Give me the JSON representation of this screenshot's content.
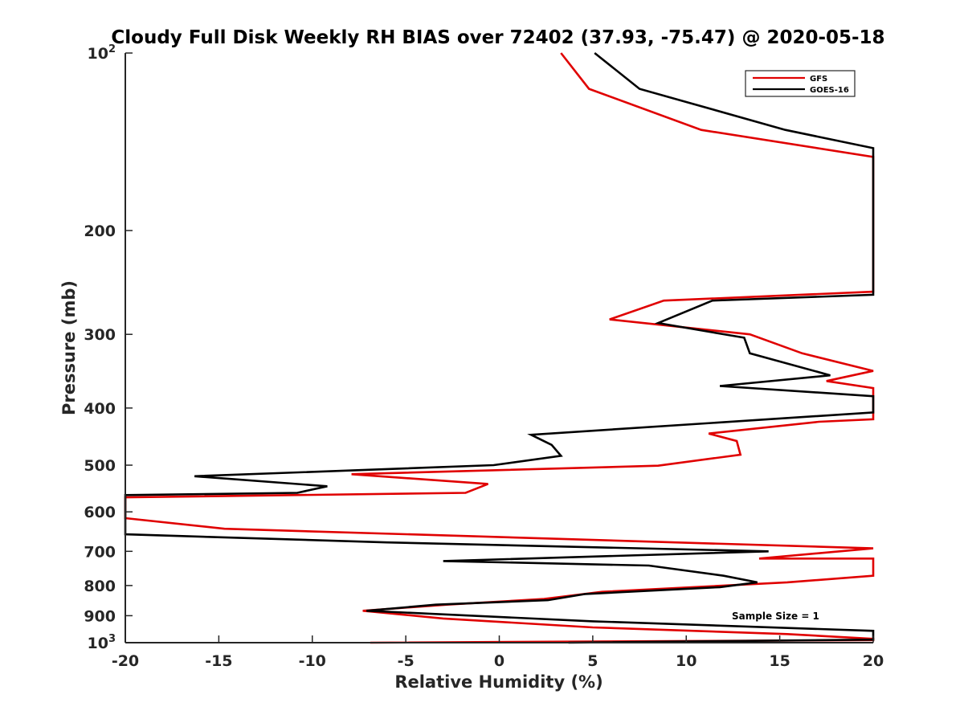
{
  "chart_data": {
    "type": "line",
    "title": "Cloudy Full Disk Weekly RH BIAS over 72402 (37.93, -75.47) @ 2020-05-18",
    "xlabel": "Relative Humidity (%)",
    "ylabel": "Pressure (mb)",
    "xlim": [
      -20,
      20
    ],
    "ylim": [
      100,
      1000
    ],
    "y_scale": "log",
    "y_reversed": true,
    "grid": false,
    "legend_position": "top-right",
    "x_ticks": [
      "-20",
      "-15",
      "-10",
      "-5",
      "0",
      "5",
      "10",
      "15",
      "20"
    ],
    "y_ticks": [
      {
        "value": 100,
        "base": "10",
        "exp": "2"
      },
      {
        "value": 200,
        "label": "200"
      },
      {
        "value": 300,
        "label": "300"
      },
      {
        "value": 400,
        "label": "400"
      },
      {
        "value": 500,
        "label": "500"
      },
      {
        "value": 600,
        "label": "600"
      },
      {
        "value": 700,
        "label": "700"
      },
      {
        "value": 800,
        "label": "800"
      },
      {
        "value": 900,
        "label": "900"
      },
      {
        "value": 1000,
        "base": "10",
        "exp": "3"
      }
    ],
    "annotation": "Sample Size = 1",
    "series": [
      {
        "name": "GFS",
        "color": "#e00000",
        "points": [
          [
            3.3,
            100
          ],
          [
            4.8,
            115
          ],
          [
            10.8,
            135
          ],
          [
            20,
            150
          ],
          [
            20,
            254
          ],
          [
            8.8,
            263
          ],
          [
            5.9,
            283
          ],
          [
            13.4,
            300
          ],
          [
            16.2,
            323
          ],
          [
            20,
            346
          ],
          [
            17.5,
            360
          ],
          [
            20,
            370
          ],
          [
            20,
            418
          ],
          [
            17.1,
            422
          ],
          [
            11.2,
            442
          ],
          [
            12.7,
            455
          ],
          [
            12.9,
            480
          ],
          [
            8.5,
            501
          ],
          [
            -7.9,
            518
          ],
          [
            -0.6,
            538
          ],
          [
            -1.8,
            557
          ],
          [
            -20,
            567
          ],
          [
            -20,
            615
          ],
          [
            -20,
            615
          ],
          [
            -14.7,
            641
          ],
          [
            20,
            692
          ],
          [
            13.9,
            720
          ],
          [
            20,
            720
          ],
          [
            20,
            740
          ],
          [
            20,
            770
          ],
          [
            15.4,
            790
          ],
          [
            5.5,
            820
          ],
          [
            2.4,
            843
          ],
          [
            -2.8,
            862
          ],
          [
            -7.3,
            883
          ],
          [
            -3.0,
            910
          ],
          [
            5.0,
            942
          ],
          [
            15.4,
            967
          ],
          [
            20,
            985
          ],
          [
            20,
            990
          ],
          [
            -6.9,
            1000
          ]
        ]
      },
      {
        "name": "GOES-16",
        "color": "#000000",
        "points": [
          [
            5.1,
            100
          ],
          [
            7.5,
            115
          ],
          [
            15.3,
            135
          ],
          [
            20,
            145
          ],
          [
            20,
            257
          ],
          [
            11.4,
            263
          ],
          [
            8.5,
            287
          ],
          [
            13.1,
            304
          ],
          [
            13.4,
            323
          ],
          [
            17.7,
            352
          ],
          [
            11.8,
            367
          ],
          [
            20,
            382
          ],
          [
            20,
            407
          ],
          [
            1.7,
            444
          ],
          [
            2.8,
            462
          ],
          [
            3.3,
            482
          ],
          [
            -0.3,
            500
          ],
          [
            -16.3,
            522
          ],
          [
            -9.2,
            543
          ],
          [
            -10.8,
            557
          ],
          [
            -20,
            562
          ],
          [
            -20,
            655
          ],
          [
            -6,
            676
          ],
          [
            14.4,
            700
          ],
          [
            -3.0,
            727
          ],
          [
            8.0,
            740
          ],
          [
            12.0,
            770
          ],
          [
            13.8,
            790
          ],
          [
            11.8,
            805
          ],
          [
            4.6,
            827
          ],
          [
            2.6,
            847
          ],
          [
            -3.4,
            862
          ],
          [
            -7.1,
            883
          ],
          [
            5.0,
            920
          ],
          [
            20,
            955
          ],
          [
            20,
            988
          ],
          [
            3.7,
            1000
          ]
        ]
      }
    ]
  }
}
